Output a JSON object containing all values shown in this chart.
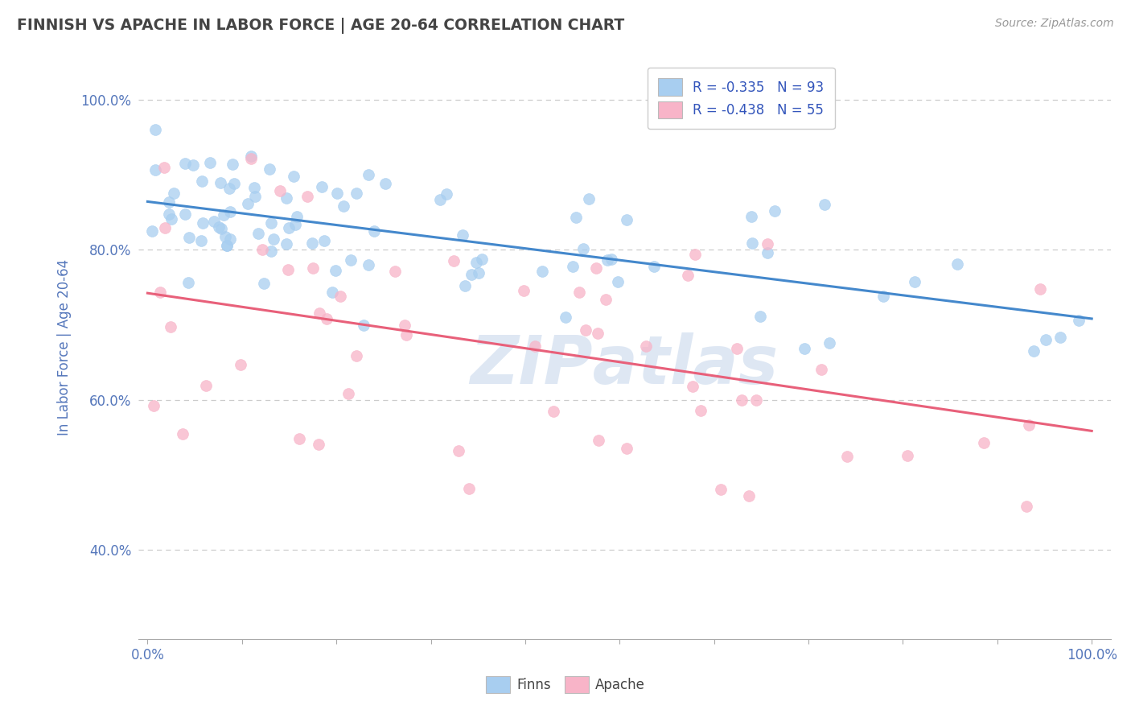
{
  "title": "FINNISH VS APACHE IN LABOR FORCE | AGE 20-64 CORRELATION CHART",
  "source": "Source: ZipAtlas.com",
  "ylabel": "In Labor Force | Age 20-64",
  "legend_finn": "Finns",
  "legend_apache": "Apache",
  "finn_R": -0.335,
  "finn_N": 93,
  "apache_R": -0.438,
  "apache_N": 55,
  "finn_color": "#a8cef0",
  "apache_color": "#f8b4c8",
  "finn_line_color": "#4488cc",
  "apache_line_color": "#e8607a",
  "background_color": "#ffffff",
  "grid_color": "#cccccc",
  "axis_label_color": "#5577bb",
  "watermark_color": "#c8d8ec",
  "xlim": [
    -0.01,
    1.02
  ],
  "ylim": [
    0.28,
    1.06
  ],
  "yticks": [
    0.4,
    0.6,
    0.8,
    1.0
  ],
  "ytick_labels": [
    "40.0%",
    "60.0%",
    "80.0%",
    "100.0%"
  ],
  "xtick_labels": [
    "0.0%",
    "",
    "",
    "",
    "",
    "",
    "",
    "",
    "",
    "",
    "100.0%"
  ]
}
